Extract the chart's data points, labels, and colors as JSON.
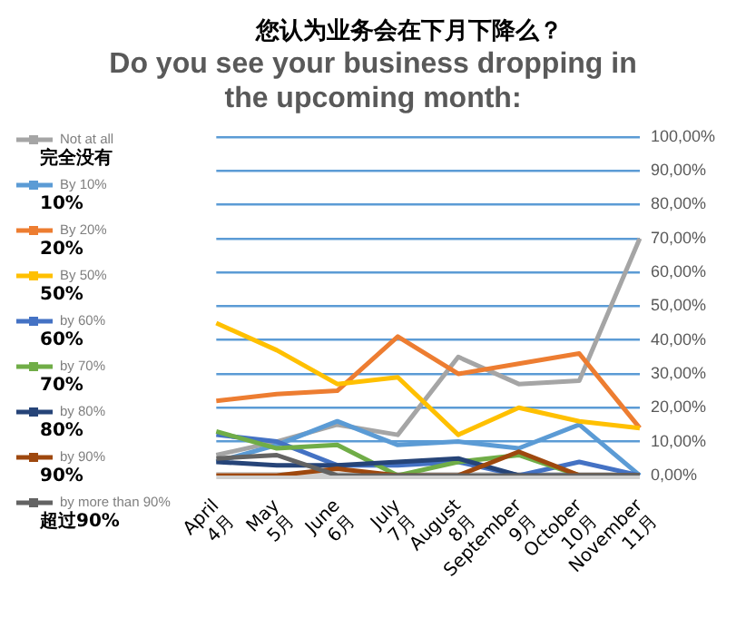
{
  "chart_data": {
    "type": "line",
    "title": "您认为业务会在下月下降么？",
    "subtitle": "Do you see your business dropping in the upcoming month:",
    "categories": [
      "April\n4月",
      "May\n5月",
      "June\n6月",
      "July\n7月",
      "August\n8月",
      "September\n9月",
      "October\n10月",
      "November\n11月"
    ],
    "series": [
      {
        "name": "Not at all\n完全没有",
        "color": "#a5a5a5",
        "values": [
          6,
          10,
          15,
          12,
          35,
          27,
          28,
          70
        ]
      },
      {
        "name": "By 10%\n10%",
        "color": "#5b9bd5",
        "values": [
          4,
          9,
          16,
          9,
          10,
          8,
          15,
          0
        ]
      },
      {
        "name": "By 20%\n20%",
        "color": "#ed7d31",
        "values": [
          22,
          24,
          25,
          41,
          30,
          33,
          36,
          14
        ]
      },
      {
        "name": "By 50%\n50%",
        "color": "#ffc000",
        "values": [
          45,
          37,
          27,
          29,
          12,
          20,
          16,
          14
        ]
      },
      {
        "name": "by 60%\n60%",
        "color": "#4472c4",
        "values": [
          12,
          10,
          3,
          3,
          4,
          0,
          4,
          0
        ]
      },
      {
        "name": "by 70%\n70%",
        "color": "#70ad47",
        "values": [
          13,
          8,
          9,
          0,
          4,
          6,
          0,
          0
        ]
      },
      {
        "name": "by 80%\n80%",
        "color": "#264478",
        "values": [
          4,
          3,
          3,
          4,
          5,
          0,
          0,
          0
        ]
      },
      {
        "name": "by 90%\n90%",
        "color": "#9e480e",
        "values": [
          0,
          0,
          2,
          0,
          0,
          7,
          0,
          0
        ]
      },
      {
        "name": "by more than 90%\n超过90%",
        "color": "#636363",
        "values": [
          5,
          6,
          0,
          0,
          0,
          0,
          0,
          0
        ]
      }
    ],
    "ylim": [
      0,
      100
    ],
    "yticks": [
      {
        "value": 0,
        "label": "0,00%"
      },
      {
        "value": 10,
        "label": "10,00%"
      },
      {
        "value": 20,
        "label": "20,00%"
      },
      {
        "value": 30,
        "label": "30,00%"
      },
      {
        "value": 40,
        "label": "40,00%"
      },
      {
        "value": 50,
        "label": "50,00%"
      },
      {
        "value": 60,
        "label": "60,00%"
      },
      {
        "value": 70,
        "label": "70,00%"
      },
      {
        "value": 80,
        "label": "80,00%"
      },
      {
        "value": 90,
        "label": "90,00%"
      },
      {
        "value": 100,
        "label": "100,00%"
      }
    ],
    "grid": "y",
    "legend": "left"
  }
}
